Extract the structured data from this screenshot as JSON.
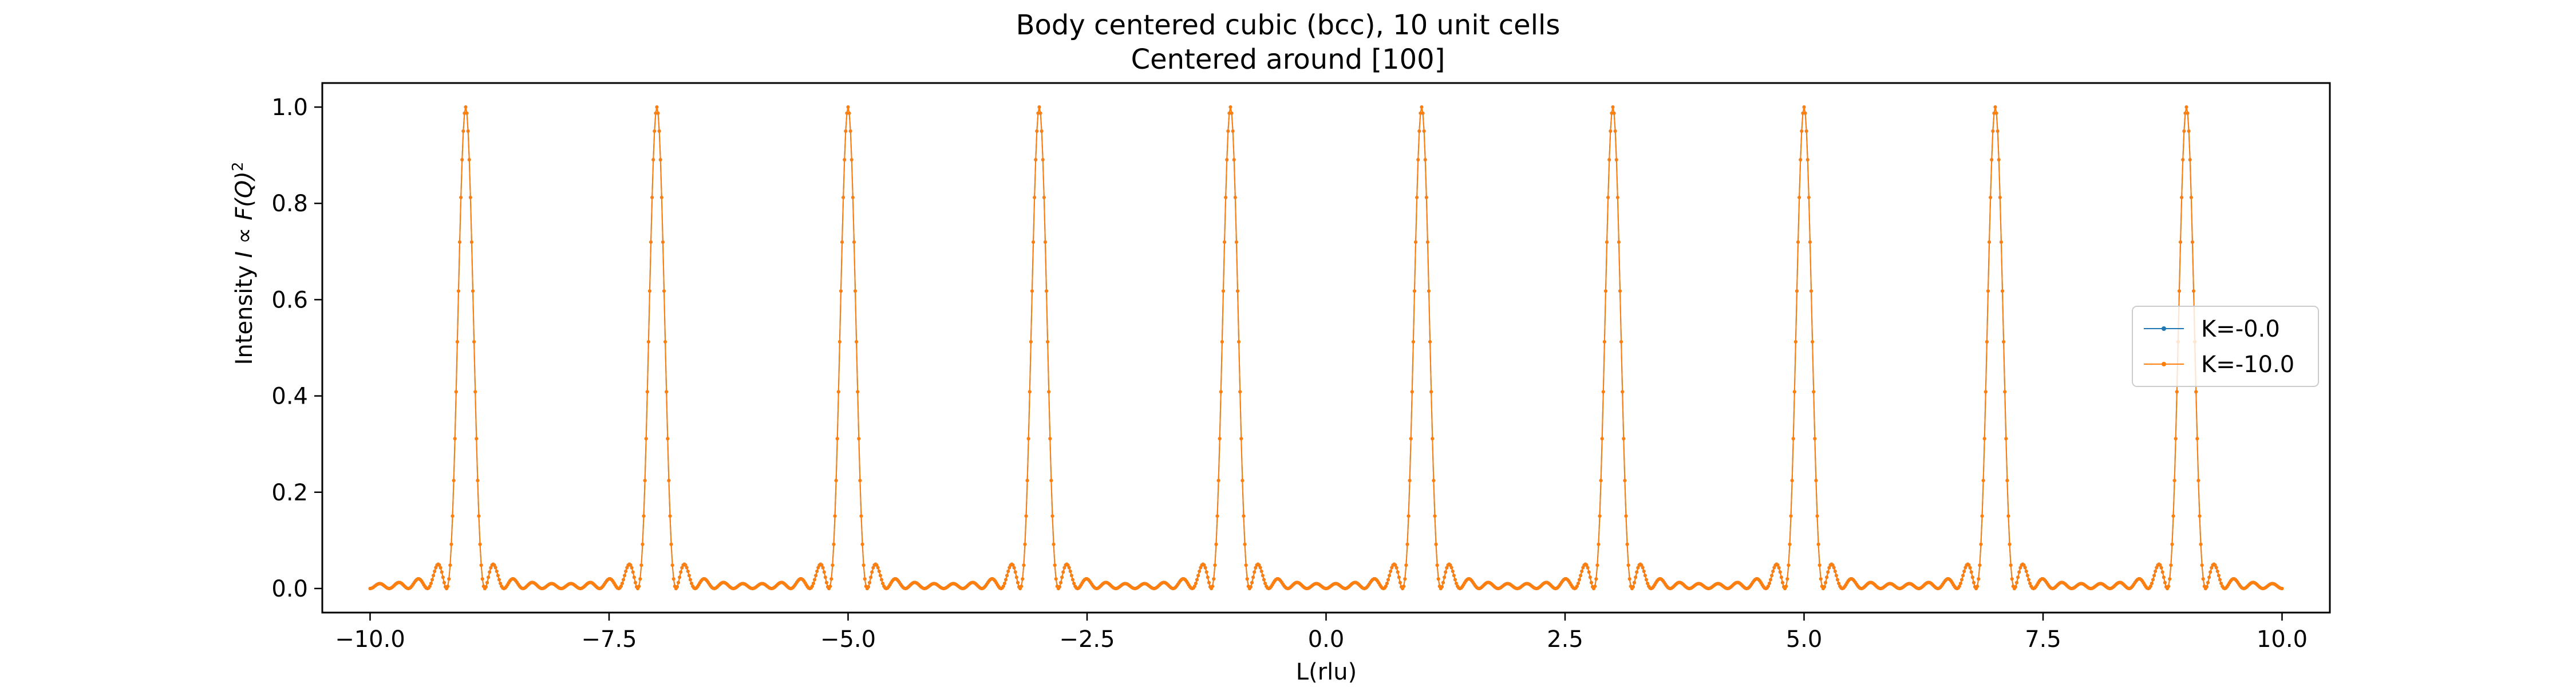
{
  "chart_data": {
    "type": "line",
    "title": "Body centered cubic (bcc), 10 unit cells",
    "subtitle": "Centered around [100]",
    "xlabel": "L(rlu)",
    "ylabel_prefix": "Intensity ",
    "ylabel_math": "I ∝ F(Q)",
    "ylabel_power": "2",
    "xlim": [
      -10.5,
      10.5
    ],
    "ylim": [
      -0.05,
      1.05
    ],
    "xticks": [
      -10,
      -7.5,
      -5,
      -2.5,
      0,
      2.5,
      5,
      7.5,
      10
    ],
    "xtick_labels": [
      "−10.0",
      "−7.5",
      "−5.0",
      "−2.5",
      "0.0",
      "2.5",
      "5.0",
      "7.5",
      "10.0"
    ],
    "yticks": [
      0,
      0.2,
      0.4,
      0.6,
      0.8,
      1.0
    ],
    "ytick_labels": [
      "0.0",
      "0.2",
      "0.4",
      "0.6",
      "0.8",
      "1.0"
    ],
    "peak_positions": [
      -9,
      -7,
      -5,
      -3,
      -1,
      1,
      3,
      5,
      7,
      9
    ],
    "peak_height": 1.0,
    "unit_cells": 10,
    "x_range": [
      -10,
      10
    ],
    "grid": false,
    "legend_placement": "center-right",
    "series": [
      {
        "name": "K=-0.0",
        "color": "#1f77b4"
      },
      {
        "name": "K=-10.0",
        "color": "#ff7f0e"
      }
    ]
  }
}
